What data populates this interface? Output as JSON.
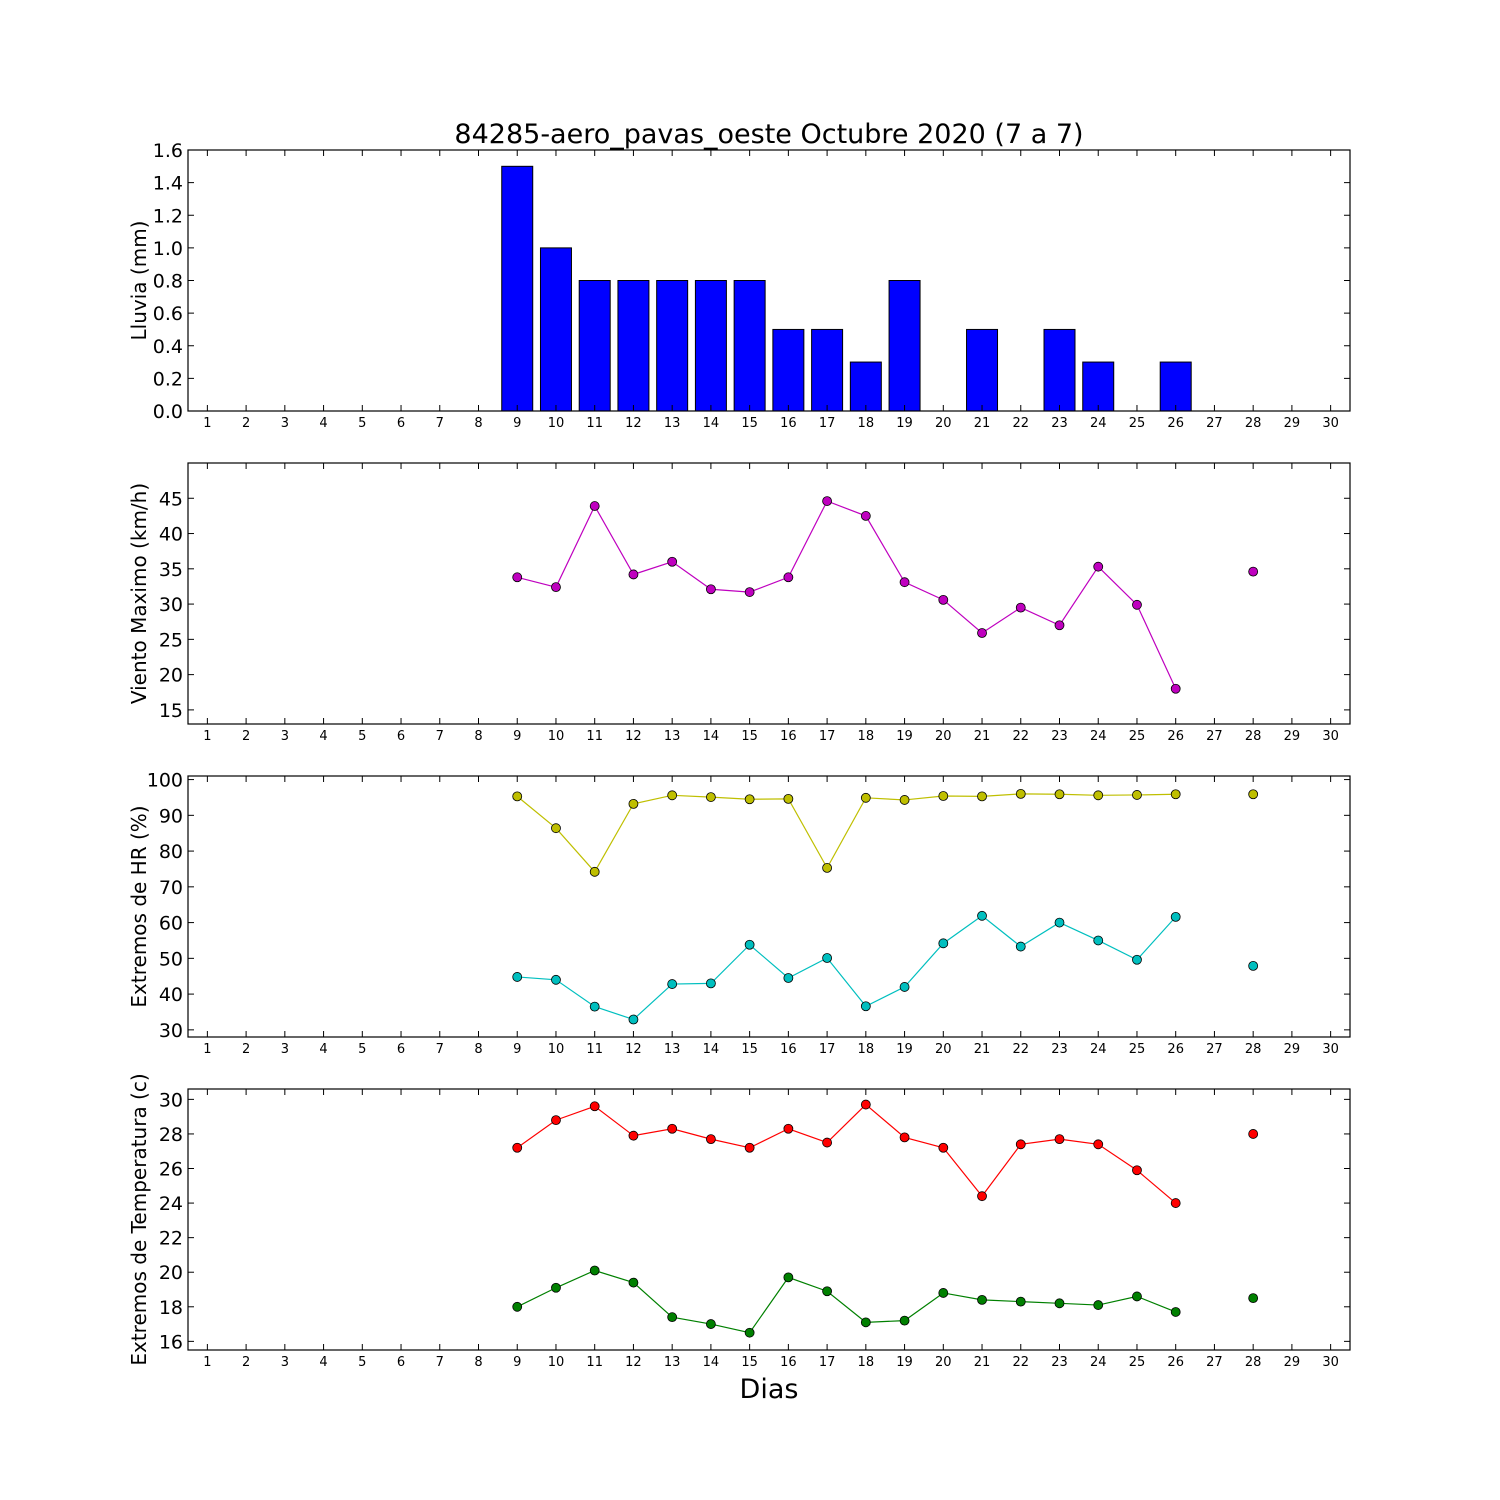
{
  "title": "84285-aero_pavas_oeste Octubre 2020  (7 a 7)",
  "xlabel": "Dias",
  "colors": {
    "rain": "#0000ff",
    "wind": "#bf00bf",
    "hr_max": "#bfbf00",
    "hr_min": "#00bfbf",
    "temp_max": "#ff0000",
    "temp_min": "#008000"
  },
  "chart_data": [
    {
      "type": "bar",
      "ylabel": "Lluvia (mm)",
      "categories": [
        "1",
        "2",
        "3",
        "4",
        "5",
        "6",
        "7",
        "8",
        "9",
        "10",
        "11",
        "12",
        "13",
        "14",
        "15",
        "16",
        "17",
        "18",
        "19",
        "20",
        "21",
        "22",
        "23",
        "24",
        "25",
        "26",
        "27",
        "28",
        "29",
        "30"
      ],
      "x": [
        1,
        2,
        3,
        4,
        5,
        6,
        7,
        8,
        9,
        10,
        11,
        12,
        13,
        14,
        15,
        16,
        17,
        18,
        19,
        20,
        21,
        22,
        23,
        24,
        25,
        26,
        27,
        28,
        29,
        30
      ],
      "values": [
        0,
        0,
        0,
        0,
        0,
        0,
        0,
        0,
        1.5,
        1.0,
        0.8,
        0.8,
        0.8,
        0.8,
        0.8,
        0.5,
        0.5,
        0.3,
        0.8,
        0,
        0.5,
        0,
        0.5,
        0.3,
        0,
        0.3,
        0,
        0,
        0,
        0
      ],
      "ylim": [
        0,
        1.6
      ],
      "yticks": [
        "0.0",
        "0.2",
        "0.4",
        "0.6",
        "0.8",
        "1.0",
        "1.2",
        "1.4",
        "1.6"
      ],
      "grid": false
    },
    {
      "type": "line",
      "ylabel": "Viento Maximo (km/h)",
      "categories": [
        "1",
        "2",
        "3",
        "4",
        "5",
        "6",
        "7",
        "8",
        "9",
        "10",
        "11",
        "12",
        "13",
        "14",
        "15",
        "16",
        "17",
        "18",
        "19",
        "20",
        "21",
        "22",
        "23",
        "24",
        "25",
        "26",
        "27",
        "28",
        "29",
        "30"
      ],
      "x": [
        9,
        10,
        11,
        12,
        13,
        14,
        15,
        16,
        17,
        18,
        19,
        20,
        21,
        22,
        23,
        24,
        25,
        26,
        27,
        28
      ],
      "series": [
        {
          "values": [
            33.8,
            32.4,
            43.9,
            34.2,
            36.0,
            32.1,
            31.7,
            33.8,
            44.6,
            42.5,
            33.1,
            30.6,
            25.9,
            29.5,
            27.0,
            35.3,
            29.9,
            18.0,
            null,
            34.6
          ]
        }
      ],
      "ylim": [
        13,
        50
      ],
      "yticks": [
        "15",
        "20",
        "25",
        "30",
        "35",
        "40",
        "45"
      ],
      "grid": false
    },
    {
      "type": "line",
      "ylabel": "Extremos de HR (%)",
      "categories": [
        "1",
        "2",
        "3",
        "4",
        "5",
        "6",
        "7",
        "8",
        "9",
        "10",
        "11",
        "12",
        "13",
        "14",
        "15",
        "16",
        "17",
        "18",
        "19",
        "20",
        "21",
        "22",
        "23",
        "24",
        "25",
        "26",
        "27",
        "28",
        "29",
        "30"
      ],
      "x": [
        9,
        10,
        11,
        12,
        13,
        14,
        15,
        16,
        17,
        18,
        19,
        20,
        21,
        22,
        23,
        24,
        25,
        26,
        27,
        28
      ],
      "series": [
        {
          "values": [
            95.3,
            86.4,
            74.2,
            93.2,
            95.6,
            95.1,
            94.5,
            94.6,
            75.3,
            94.9,
            94.3,
            95.4,
            95.3,
            96.0,
            95.9,
            95.6,
            95.7,
            95.9,
            null,
            95.9
          ]
        },
        {
          "values": [
            44.8,
            44.0,
            36.5,
            32.9,
            42.8,
            43.0,
            53.8,
            44.5,
            50.1,
            36.6,
            42.0,
            54.2,
            61.9,
            53.3,
            60.0,
            55.0,
            49.6,
            61.6,
            null,
            47.9
          ]
        }
      ],
      "ylim": [
        28,
        101
      ],
      "yticks": [
        "30",
        "40",
        "50",
        "60",
        "70",
        "80",
        "90",
        "100"
      ],
      "grid": false
    },
    {
      "type": "line",
      "ylabel": "Extremos de Temperatura (c)",
      "categories": [
        "1",
        "2",
        "3",
        "4",
        "5",
        "6",
        "7",
        "8",
        "9",
        "10",
        "11",
        "12",
        "13",
        "14",
        "15",
        "16",
        "17",
        "18",
        "19",
        "20",
        "21",
        "22",
        "23",
        "24",
        "25",
        "26",
        "27",
        "28",
        "29",
        "30"
      ],
      "x": [
        9,
        10,
        11,
        12,
        13,
        14,
        15,
        16,
        17,
        18,
        19,
        20,
        21,
        22,
        23,
        24,
        25,
        26,
        27,
        28
      ],
      "series": [
        {
          "values": [
            27.2,
            28.8,
            29.6,
            27.9,
            28.3,
            27.7,
            27.2,
            28.3,
            27.5,
            29.7,
            27.8,
            27.2,
            24.4,
            27.4,
            27.7,
            27.4,
            25.9,
            24.0,
            null,
            28.0
          ]
        },
        {
          "values": [
            18.0,
            19.1,
            20.1,
            19.4,
            17.4,
            17.0,
            16.5,
            19.7,
            18.9,
            17.1,
            17.2,
            18.8,
            18.4,
            18.3,
            18.2,
            18.1,
            18.6,
            17.7,
            null,
            18.5
          ]
        }
      ],
      "ylim": [
        15.5,
        30.6
      ],
      "yticks": [
        "16",
        "18",
        "20",
        "22",
        "24",
        "26",
        "28",
        "30"
      ],
      "grid": false
    }
  ]
}
